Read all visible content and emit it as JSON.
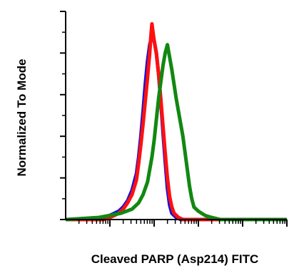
{
  "chart_data": {
    "type": "histogram",
    "title": "",
    "xlabel": "Cleaved PARP (Asp214) FITC",
    "ylabel": "Normalized To Mode",
    "x_scale": "log",
    "x_decades": 5,
    "ylim": [
      0,
      100
    ],
    "grid": false,
    "legend": "none",
    "series": [
      {
        "color": "#1010e0",
        "points": [
          [
            0.0,
            0
          ],
          [
            0.15,
            0
          ],
          [
            0.18,
            1
          ],
          [
            0.2,
            2
          ],
          [
            0.22,
            3
          ],
          [
            0.24,
            4
          ],
          [
            0.26,
            6
          ],
          [
            0.28,
            9
          ],
          [
            0.3,
            14
          ],
          [
            0.32,
            22
          ],
          [
            0.33,
            30
          ],
          [
            0.34,
            40
          ],
          [
            0.35,
            52
          ],
          [
            0.36,
            65
          ],
          [
            0.37,
            76
          ],
          [
            0.38,
            84
          ],
          [
            0.39,
            88
          ],
          [
            0.4,
            86
          ],
          [
            0.41,
            80
          ],
          [
            0.42,
            70
          ],
          [
            0.43,
            57
          ],
          [
            0.44,
            42
          ],
          [
            0.45,
            28
          ],
          [
            0.46,
            15
          ],
          [
            0.47,
            7
          ],
          [
            0.48,
            3
          ],
          [
            0.5,
            1
          ],
          [
            0.52,
            0
          ],
          [
            1.0,
            0
          ]
        ]
      },
      {
        "color": "#ff1010",
        "points": [
          [
            0.0,
            0
          ],
          [
            0.17,
            0
          ],
          [
            0.2,
            1
          ],
          [
            0.22,
            2
          ],
          [
            0.24,
            3
          ],
          [
            0.26,
            5
          ],
          [
            0.28,
            8
          ],
          [
            0.3,
            12
          ],
          [
            0.32,
            19
          ],
          [
            0.33,
            27
          ],
          [
            0.34,
            36
          ],
          [
            0.35,
            46
          ],
          [
            0.36,
            57
          ],
          [
            0.37,
            68
          ],
          [
            0.38,
            80
          ],
          [
            0.385,
            88
          ],
          [
            0.39,
            94
          ],
          [
            0.395,
            90
          ],
          [
            0.4,
            86
          ],
          [
            0.41,
            80
          ],
          [
            0.42,
            70
          ],
          [
            0.43,
            58
          ],
          [
            0.44,
            45
          ],
          [
            0.45,
            32
          ],
          [
            0.46,
            20
          ],
          [
            0.47,
            11
          ],
          [
            0.48,
            6
          ],
          [
            0.49,
            3
          ],
          [
            0.51,
            1
          ],
          [
            0.53,
            0
          ],
          [
            1.0,
            0
          ]
        ]
      },
      {
        "color": "#118811",
        "points": [
          [
            0.0,
            0
          ],
          [
            0.15,
            1
          ],
          [
            0.2,
            2
          ],
          [
            0.25,
            3
          ],
          [
            0.3,
            5
          ],
          [
            0.33,
            8
          ],
          [
            0.35,
            12
          ],
          [
            0.37,
            18
          ],
          [
            0.38,
            24
          ],
          [
            0.39,
            30
          ],
          [
            0.4,
            38
          ],
          [
            0.41,
            48
          ],
          [
            0.42,
            58
          ],
          [
            0.43,
            66
          ],
          [
            0.44,
            74
          ],
          [
            0.45,
            80
          ],
          [
            0.46,
            84
          ],
          [
            0.47,
            78
          ],
          [
            0.48,
            72
          ],
          [
            0.49,
            65
          ],
          [
            0.5,
            58
          ],
          [
            0.51,
            52
          ],
          [
            0.52,
            46
          ],
          [
            0.53,
            40
          ],
          [
            0.54,
            32
          ],
          [
            0.55,
            24
          ],
          [
            0.56,
            16
          ],
          [
            0.57,
            10
          ],
          [
            0.58,
            6
          ],
          [
            0.6,
            4
          ],
          [
            0.63,
            2
          ],
          [
            0.66,
            1
          ],
          [
            0.7,
            0
          ],
          [
            1.0,
            0
          ]
        ]
      }
    ]
  }
}
